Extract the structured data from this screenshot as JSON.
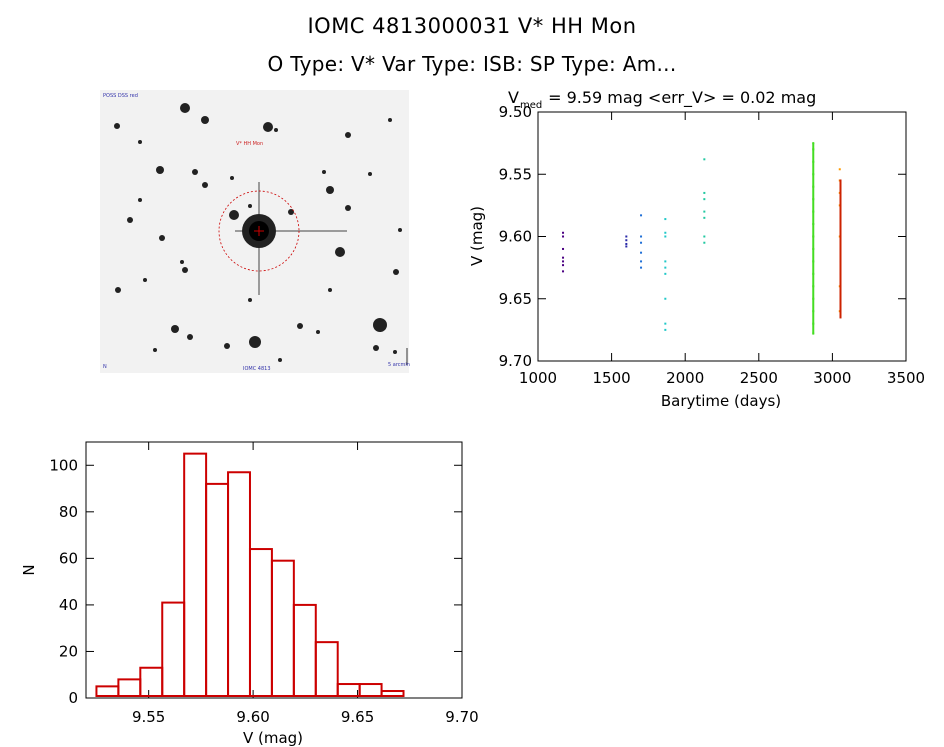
{
  "header": {
    "title": "IOMC 4813000031    V* HH Mon",
    "subtitle": "O Type: V*  Var Type: ISB:  SP Type: Am..."
  },
  "finder": {
    "top_left_label": "POSS DSS red",
    "target_label": "V* HH Mon",
    "bottom_left_label": "N",
    "bottom_center_label": "IOMC 4813",
    "bottom_right_label": "5 arcmin",
    "circle_color": "#cc0000"
  },
  "chart_data": [
    {
      "type": "scatter",
      "title_main": "V",
      "title_sub": "med",
      "title_rest": " = 9.59 mag <err_V> = 0.02 mag",
      "xlabel": "Barytime (days)",
      "ylabel": "V (mag)",
      "xlim": [
        1000,
        3500
      ],
      "ylim": [
        9.7,
        9.5
      ],
      "y_inverted": true,
      "xticks": [
        1000,
        1500,
        2000,
        2500,
        3000,
        3500
      ],
      "xtick_labels": [
        "1000",
        "1500",
        "2000",
        "2500",
        "3000",
        "3500"
      ],
      "yticks": [
        9.5,
        9.55,
        9.6,
        9.65,
        9.7
      ],
      "ytick_labels": [
        "9.50",
        "9.55",
        "9.60",
        "9.65",
        "9.70"
      ],
      "groups": [
        {
          "x": 1170,
          "color": "#4b0082",
          "y": [
            9.597,
            9.6,
            9.61,
            9.617,
            9.62,
            9.623,
            9.628
          ]
        },
        {
          "x": 1600,
          "color": "#2a2aa8",
          "y": [
            9.6,
            9.603,
            9.606,
            9.608
          ]
        },
        {
          "x": 1700,
          "color": "#1f6fd6",
          "y": [
            9.583,
            9.6,
            9.605,
            9.613,
            9.62,
            9.625
          ]
        },
        {
          "x": 1865,
          "color": "#20c8c8",
          "y": [
            9.586,
            9.597,
            9.6,
            9.62,
            9.625,
            9.63,
            9.65,
            9.67,
            9.675
          ]
        },
        {
          "x": 2130,
          "color": "#20c8a0",
          "y": [
            9.538,
            9.565,
            9.57,
            9.58,
            9.585,
            9.6,
            9.605
          ]
        },
        {
          "x": 2870,
          "color": "#44dd22",
          "y": [
            9.525,
            9.53,
            9.54,
            9.55,
            9.56,
            9.57,
            9.58,
            9.59,
            9.6,
            9.61,
            9.62,
            9.63,
            9.64,
            9.65,
            9.66,
            9.67,
            9.678
          ]
        },
        {
          "x": 3050,
          "color": "#ff9900",
          "y": [
            9.546,
            9.555,
            9.565,
            9.575,
            9.6,
            9.64,
            9.66
          ]
        },
        {
          "x": 3055,
          "color": "#cc2200",
          "y": [
            9.555,
            9.57,
            9.585,
            9.6,
            9.61,
            9.62,
            9.63,
            9.64,
            9.65,
            9.66,
            9.665
          ]
        }
      ]
    },
    {
      "type": "bar",
      "xlabel": "V (mag)",
      "ylabel": "N",
      "xlim": [
        9.52,
        9.7
      ],
      "ylim": [
        0,
        110
      ],
      "xticks": [
        9.55,
        9.6,
        9.65,
        9.7
      ],
      "xtick_labels": [
        "9.55",
        "9.60",
        "9.65",
        "9.70"
      ],
      "yticks": [
        0,
        20,
        40,
        60,
        80,
        100
      ],
      "ytick_labels": [
        "0",
        "20",
        "40",
        "60",
        "80",
        "100"
      ],
      "bin_start": 9.525,
      "bin_width": 0.0105,
      "values": [
        5,
        8,
        13,
        41,
        105,
        92,
        97,
        64,
        59,
        40,
        24,
        6,
        6,
        3
      ],
      "color": "#cc0000"
    }
  ]
}
